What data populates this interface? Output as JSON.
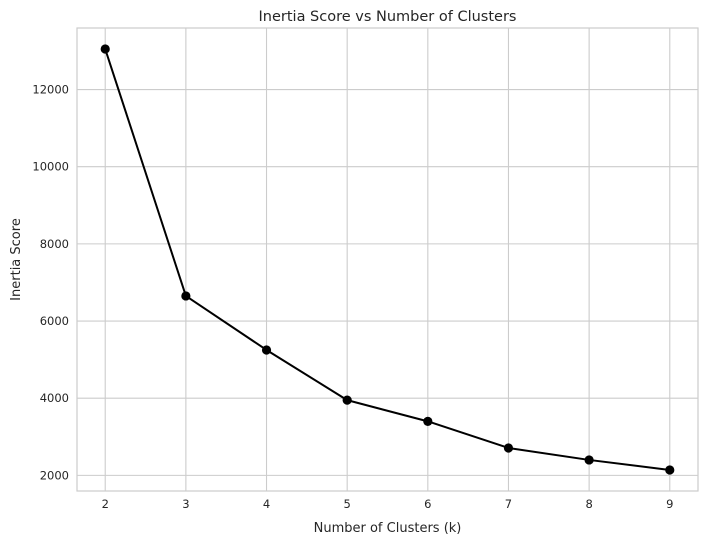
{
  "chart_data": {
    "type": "line",
    "title": "Inertia Score vs Number of Clusters",
    "xlabel": "Number of Clusters (k)",
    "ylabel": "Inertia Score",
    "x": [
      2,
      3,
      4,
      5,
      6,
      7,
      8,
      9
    ],
    "series": [
      {
        "values": [
          13050,
          6650,
          5250,
          3950,
          3400,
          2710,
          2400,
          2140
        ]
      }
    ],
    "xlim": [
      1.65,
      9.35
    ],
    "ylim": [
      1595,
      13595
    ],
    "xticks": [
      2,
      3,
      4,
      5,
      6,
      7,
      8,
      9
    ],
    "yticks": [
      2000,
      4000,
      6000,
      8000,
      10000,
      12000
    ],
    "grid": true,
    "legend": "none",
    "line_color": "#000000",
    "marker_color": "#000000",
    "grid_color": "#cccccc"
  }
}
